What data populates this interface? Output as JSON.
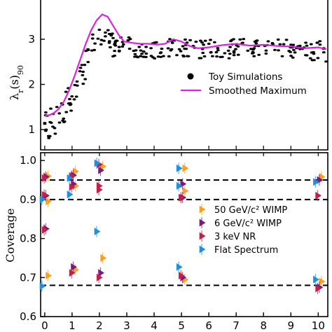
{
  "chart_data": [
    {
      "type": "scatter",
      "panel": "top",
      "ylabel": "λ_r(s)_90",
      "yticks": [
        "1",
        "2",
        "3"
      ],
      "ylim": [
        0.55,
        3.9
      ],
      "xlim": [
        -0.15,
        10.35
      ],
      "grid": false,
      "legend": {
        "placement": "center-right",
        "entries": [
          {
            "label": "Toy Simulations",
            "marker": "dot",
            "color": "#000000"
          },
          {
            "label": "Smoothed Maximum",
            "marker": "line",
            "color": "#dd22dd"
          }
        ]
      },
      "series": [
        {
          "name": "Smoothed Maximum",
          "style": "line",
          "color": "#dd22dd",
          "x": [
            0.0,
            0.15,
            0.3,
            0.5,
            0.7,
            0.9,
            1.1,
            1.3,
            1.5,
            1.7,
            1.9,
            2.1,
            2.3,
            2.5,
            2.7,
            2.9,
            3.2,
            3.5,
            3.8,
            4.1,
            4.4,
            4.7,
            5.0,
            5.3,
            5.6,
            6.0,
            6.5,
            7.0,
            7.5,
            8.0,
            8.5,
            9.0,
            9.5,
            10.0,
            10.3
          ],
          "y": [
            1.3,
            1.32,
            1.35,
            1.45,
            1.62,
            1.88,
            2.2,
            2.55,
            2.9,
            3.2,
            3.42,
            3.55,
            3.5,
            3.3,
            3.1,
            2.95,
            2.92,
            2.9,
            2.9,
            2.88,
            2.9,
            3.0,
            2.95,
            2.85,
            2.8,
            2.82,
            2.87,
            2.9,
            2.86,
            2.88,
            2.85,
            2.84,
            2.8,
            2.82,
            2.78
          ]
        }
      ],
      "toy_simulations": {
        "name": "Toy Simulations",
        "color": "#000000",
        "envelope_x": [
          0,
          0.3,
          0.6,
          0.9,
          1.2,
          1.5,
          1.8,
          2.1,
          2.4,
          2.7,
          3.0,
          3.5,
          4.0,
          4.5,
          5.0,
          5.5,
          6.0,
          7.0,
          8.0,
          9.0,
          10.0,
          10.3
        ],
        "envelope_y": [
          1.15,
          1.3,
          1.45,
          1.75,
          2.1,
          2.55,
          2.95,
          3.15,
          3.05,
          2.95,
          2.85,
          2.8,
          2.78,
          2.8,
          2.82,
          2.8,
          2.78,
          2.8,
          2.78,
          2.78,
          2.75,
          2.72
        ],
        "spread": 0.22,
        "count": 260
      }
    },
    {
      "type": "scatter",
      "panel": "bottom",
      "ylabel": "Coverage",
      "xticks": [
        "0",
        "1",
        "2",
        "3",
        "4",
        "5",
        "6",
        "7",
        "8",
        "9",
        "10"
      ],
      "yticks": [
        "0.6",
        "0.7",
        "0.8",
        "0.9",
        "1.0"
      ],
      "xlim": [
        -0.15,
        10.35
      ],
      "ylim": [
        0.6,
        1.02
      ],
      "grid": false,
      "reference_lines": [
        0.95,
        0.9,
        0.68
      ],
      "legend": {
        "placement": "center-right",
        "entries": [
          {
            "label": "50 GeV/c² WIMP",
            "color": "#ff9f1c"
          },
          {
            "label": "6 GeV/c² WIMP",
            "color": "#7a1a7a"
          },
          {
            "label": "3 keV NR",
            "color": "#c41e4a"
          },
          {
            "label": "Flat Spectrum",
            "color": "#1e90e0"
          }
        ]
      },
      "series": [
        {
          "name": "50 GeV/c² WIMP",
          "color": "#ff9f1c",
          "points": [
            [
              0.12,
              0.96
            ],
            [
              0.12,
              0.895
            ],
            [
              0.12,
              0.705
            ],
            [
              1.12,
              0.972
            ],
            [
              1.12,
              0.935
            ],
            [
              1.12,
              0.72
            ],
            [
              2.12,
              0.985
            ],
            [
              2.12,
              0.75
            ],
            [
              5.12,
              0.98
            ],
            [
              5.12,
              0.922
            ],
            [
              5.12,
              0.695
            ],
            [
              10.12,
              0.958
            ],
            [
              10.12,
              0.69
            ]
          ]
        },
        {
          "name": "6 GeV/c² WIMP",
          "color": "#7a1a7a",
          "points": [
            [
              0.04,
              0.958
            ],
            [
              0.04,
              0.91
            ],
            [
              0.04,
              0.825
            ],
            [
              1.04,
              0.962
            ],
            [
              1.04,
              0.94
            ],
            [
              1.04,
              0.727
            ],
            [
              2.04,
              0.975
            ],
            [
              2.04,
              0.712
            ],
            [
              5.04,
              0.94
            ],
            [
              5.04,
              0.905
            ],
            [
              5.04,
              0.7
            ],
            [
              10.04,
              0.95
            ],
            [
              10.04,
              0.675
            ]
          ]
        },
        {
          "name": "3 keV NR",
          "color": "#c41e4a",
          "points": [
            [
              -0.02,
              0.955
            ],
            [
              -0.02,
              0.912
            ],
            [
              -0.02,
              0.822
            ],
            [
              0.98,
              0.96
            ],
            [
              0.98,
              0.932
            ],
            [
              0.98,
              0.712
            ],
            [
              1.98,
              0.99
            ],
            [
              1.98,
              0.935
            ],
            [
              1.98,
              0.925
            ],
            [
              1.98,
              0.7
            ],
            [
              4.98,
              0.905
            ],
            [
              4.98,
              0.705
            ],
            [
              9.98,
              0.91
            ],
            [
              9.98,
              0.672
            ]
          ]
        },
        {
          "name": "Flat Spectrum",
          "color": "#1e90e0",
          "points": [
            [
              -0.1,
              0.9
            ],
            [
              -0.1,
              0.678
            ],
            [
              0.9,
              0.955
            ],
            [
              0.9,
              0.913
            ],
            [
              1.9,
              0.993
            ],
            [
              1.9,
              0.818
            ],
            [
              4.9,
              0.98
            ],
            [
              4.9,
              0.935
            ],
            [
              4.9,
              0.727
            ],
            [
              9.9,
              0.945
            ],
            [
              9.9,
              0.695
            ]
          ]
        }
      ]
    }
  ]
}
